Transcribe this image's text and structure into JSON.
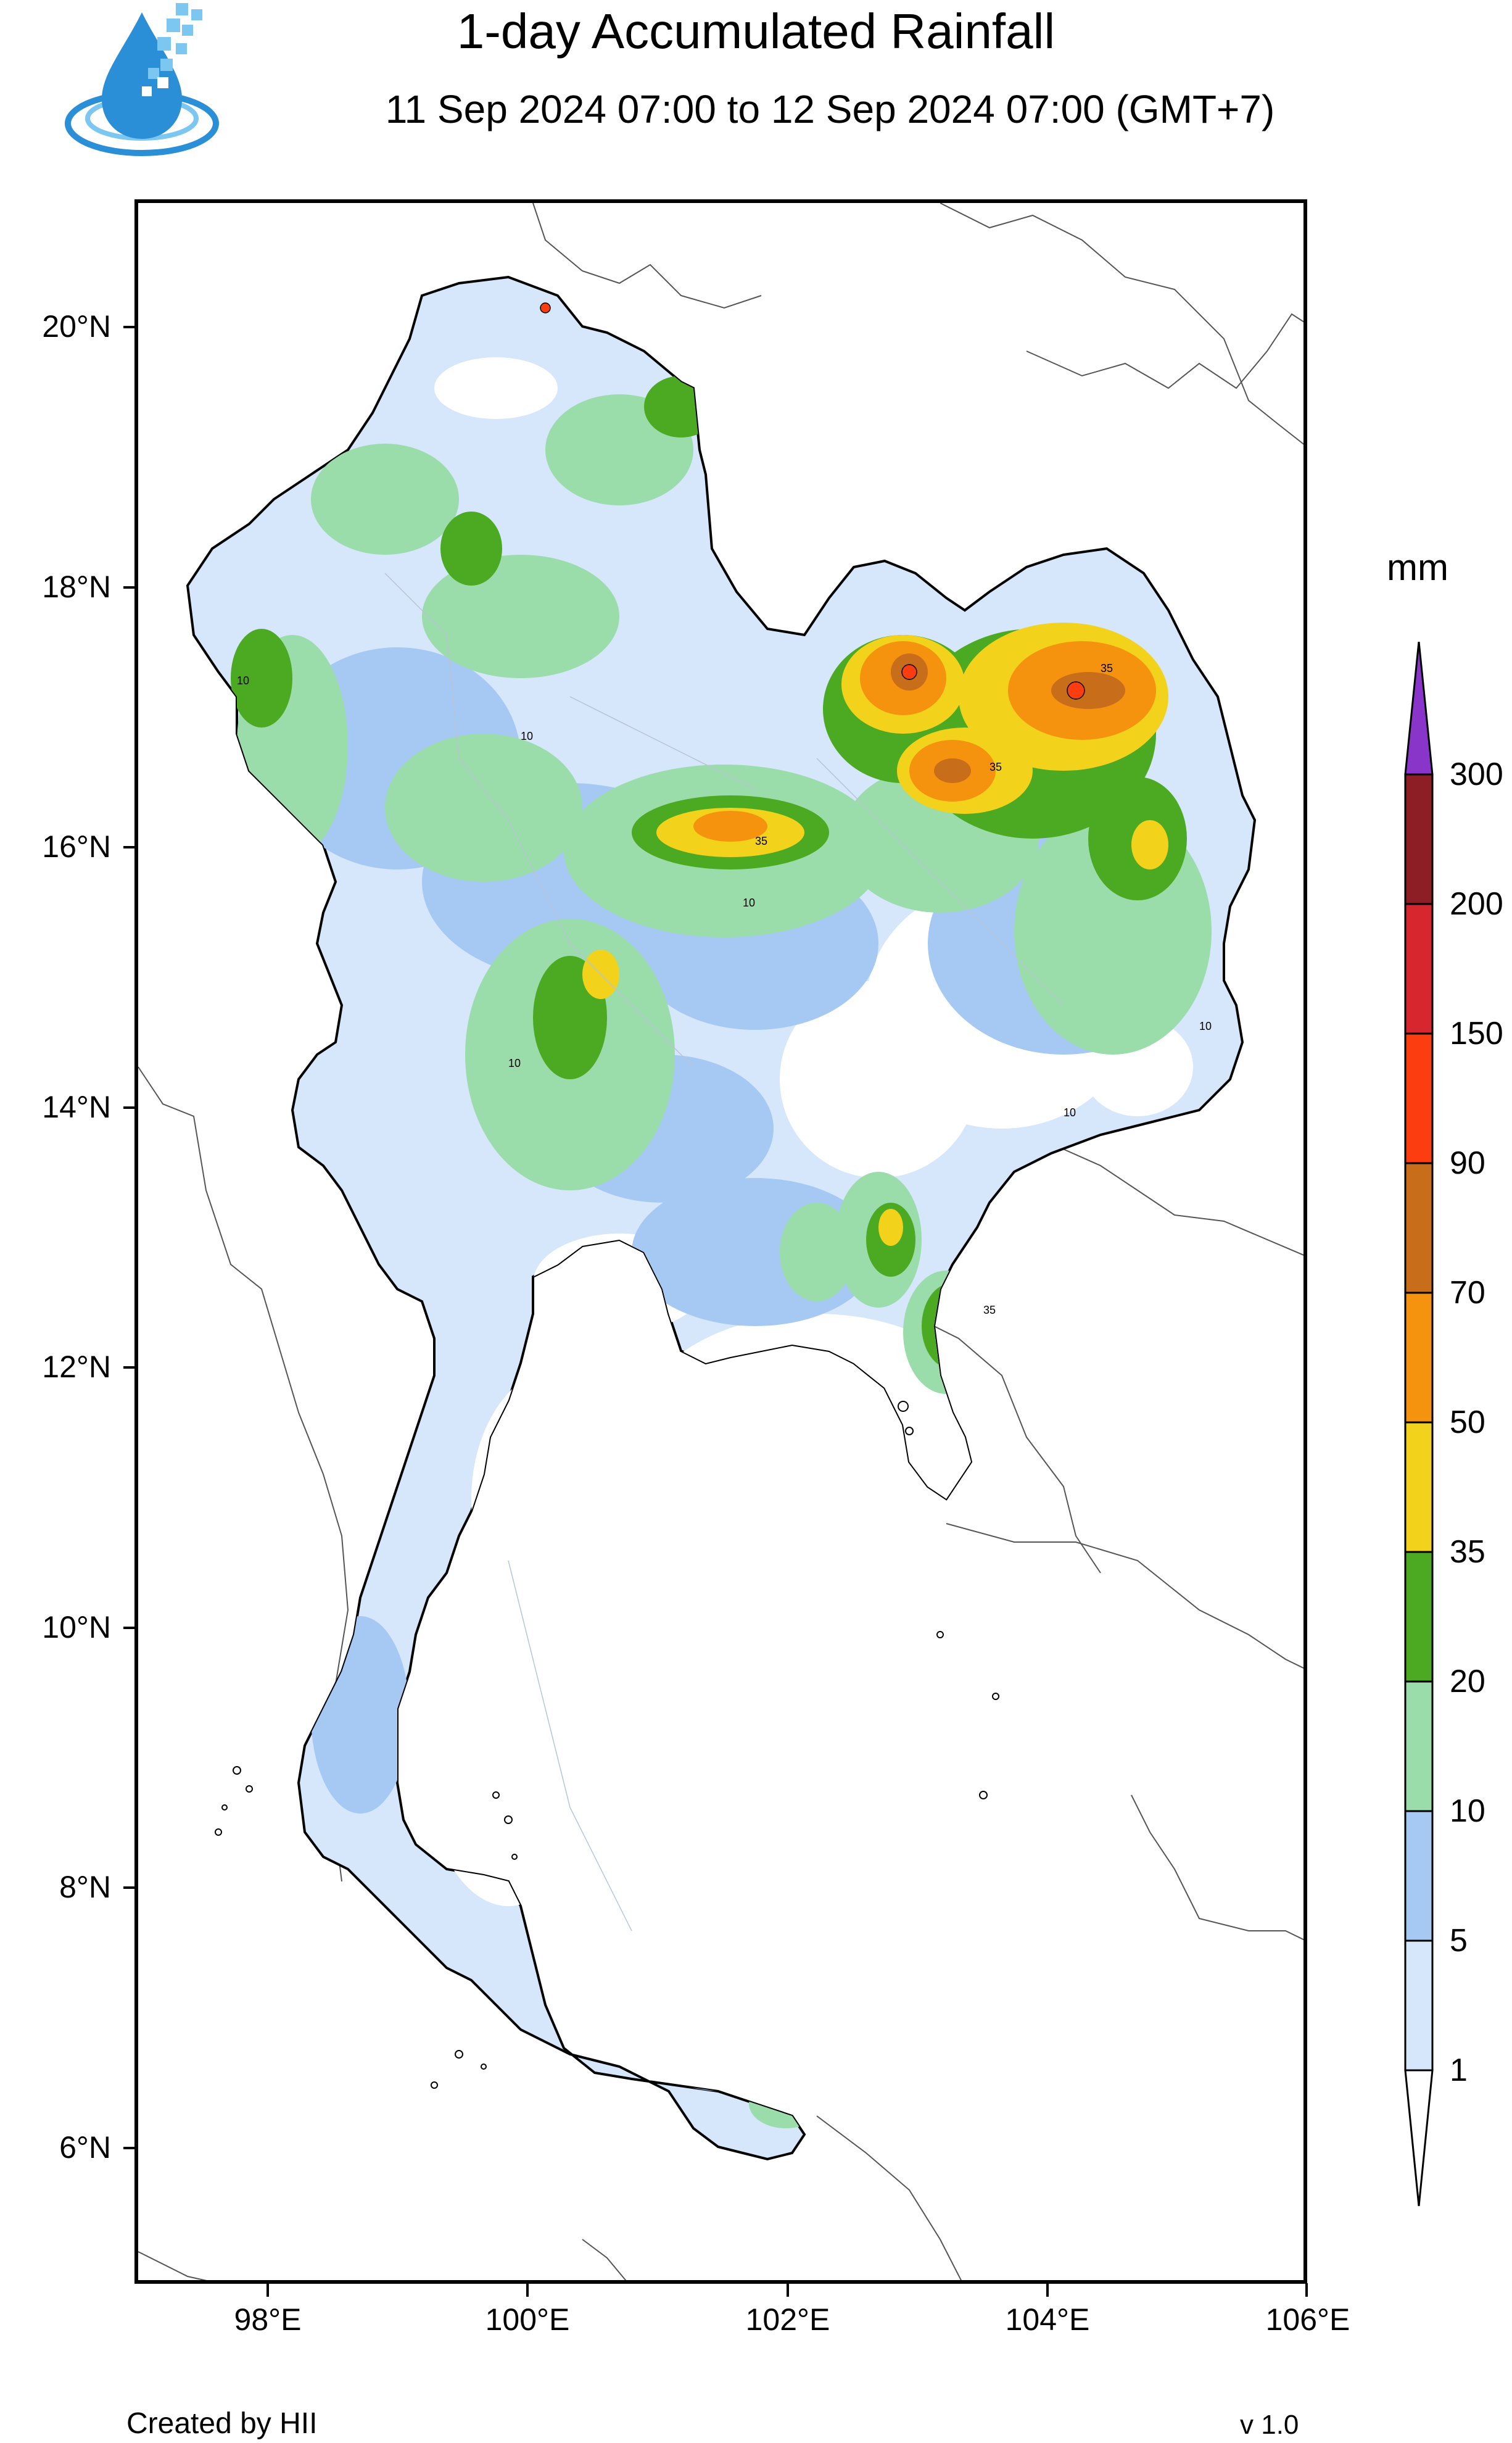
{
  "header": {
    "title": "1-day Accumulated Rainfall",
    "subtitle": "11 Sep 2024 07:00 to 12 Sep 2024 07:00 (GMT+7)"
  },
  "logo": {
    "icon": "water-drop-logo-icon",
    "colors": [
      "#1e88d4",
      "#6ec1f0"
    ]
  },
  "map": {
    "latitude_labels": [
      "20°N",
      "18°N",
      "16°N",
      "14°N",
      "12°N",
      "10°N",
      "8°N",
      "6°N"
    ],
    "longitude_labels": [
      "98°E",
      "100°E",
      "102°E",
      "104°E",
      "106°E"
    ],
    "contour_labels": [
      "10",
      "35"
    ]
  },
  "legend": {
    "unit": "mm",
    "levels": [
      "1",
      "5",
      "10",
      "20",
      "35",
      "50",
      "70",
      "90",
      "150",
      "200",
      "300"
    ],
    "colors": [
      "#ffffff",
      "#d6e6fb",
      "#a6c9f4",
      "#9adcaa",
      "#4caa22",
      "#f2d21b",
      "#f5930f",
      "#c86d1a",
      "#fc3d10",
      "#d8262e",
      "#8e1e26",
      "#8a35c9"
    ]
  },
  "footer": {
    "credit": "Created by HII",
    "version": "v 1.0"
  }
}
